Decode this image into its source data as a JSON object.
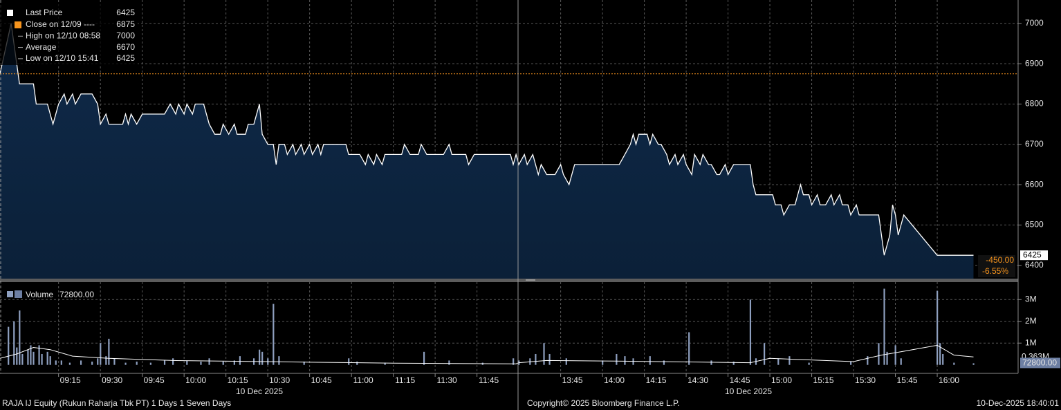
{
  "chart_data": [
    {
      "type": "area",
      "xlim": [
        "08:54",
        "16:29"
      ],
      "ylim": [
        6367,
        7058
      ],
      "yticks": [
        6400,
        6500,
        6600,
        6700,
        6800,
        6900,
        7000
      ],
      "grid": true,
      "x": [
        "08:54",
        "08:58",
        "09:01",
        "09:03",
        "09:06",
        "09:07",
        "09:11",
        "09:13",
        "09:15",
        "09:17",
        "09:18",
        "09:20",
        "09:21",
        "09:23",
        "09:27",
        "09:29",
        "09:30",
        "09:32",
        "09:33",
        "09:38",
        "09:39",
        "09:40",
        "09:41",
        "09:43",
        "09:45",
        "09:53",
        "09:55",
        "09:57",
        "09:58",
        "10:00",
        "10:01",
        "10:03",
        "10:04",
        "10:07",
        "10:09",
        "10:11",
        "10:13",
        "10:14",
        "10:16",
        "10:18",
        "10:19",
        "10:22",
        "10:23",
        "10:25",
        "10:27",
        "10:28",
        "10:30",
        "10:32",
        "10:33",
        "10:34",
        "10:36",
        "10:37",
        "10:39",
        "10:40",
        "10:42",
        "10:43",
        "10:45",
        "10:46",
        "10:48",
        "10:49",
        "10:50",
        "10:58",
        "10:59",
        "11:03",
        "11:05",
        "11:06",
        "11:08",
        "11:09",
        "11:11",
        "11:12",
        "11:18",
        "11:19",
        "11:21",
        "11:24",
        "11:25",
        "11:27",
        "11:33",
        "11:35",
        "11:36",
        "11:41",
        "11:42",
        "11:44",
        "11:57",
        "11:58",
        "11:59",
        "13:30",
        "13:32",
        "13:33",
        "13:35",
        "13:36",
        "13:37",
        "13:38",
        "13:40",
        "13:43",
        "13:45",
        "13:46",
        "13:48",
        "13:50",
        "14:06",
        "14:08",
        "14:10",
        "14:11",
        "14:12",
        "14:13",
        "14:16",
        "14:17",
        "14:18",
        "14:20",
        "14:21",
        "14:23",
        "14:24",
        "14:26",
        "14:27",
        "14:29",
        "14:30",
        "14:32",
        "14:33",
        "14:35",
        "14:36",
        "14:38",
        "14:39",
        "14:41",
        "14:42",
        "14:44",
        "14:45",
        "14:47",
        "14:53",
        "14:54",
        "14:55",
        "15:01",
        "15:02",
        "15:04",
        "15:05",
        "15:07",
        "15:09",
        "15:11",
        "15:12",
        "15:14",
        "15:15",
        "15:17",
        "15:18",
        "15:20",
        "15:22",
        "15:23",
        "15:25",
        "15:26",
        "15:28",
        "15:29",
        "15:31",
        "15:32",
        "15:39",
        "15:41",
        "15:43",
        "15:44",
        "15:45",
        "15:46",
        "15:48",
        "16:00",
        "16:13"
      ],
      "series": [
        {
          "name": "Last Price",
          "color": "#ffffff",
          "values": [
            6875,
            7000,
            6850,
            6850,
            6850,
            6800,
            6800,
            6750,
            6800,
            6825,
            6800,
            6825,
            6800,
            6825,
            6825,
            6800,
            6750,
            6775,
            6750,
            6750,
            6775,
            6750,
            6775,
            6750,
            6775,
            6775,
            6800,
            6775,
            6800,
            6775,
            6800,
            6775,
            6800,
            6800,
            6750,
            6725,
            6725,
            6750,
            6725,
            6750,
            6725,
            6725,
            6750,
            6750,
            6800,
            6725,
            6700,
            6700,
            6650,
            6700,
            6700,
            6675,
            6700,
            6675,
            6700,
            6675,
            6700,
            6675,
            6700,
            6675,
            6700,
            6700,
            6675,
            6675,
            6650,
            6675,
            6650,
            6675,
            6650,
            6675,
            6675,
            6700,
            6675,
            6675,
            6700,
            6675,
            6675,
            6700,
            6675,
            6675,
            6650,
            6675,
            6675,
            6650,
            6675,
            6650,
            6675,
            6650,
            6675,
            6650,
            6625,
            6650,
            6625,
            6625,
            6650,
            6625,
            6600,
            6650,
            6650,
            6675,
            6700,
            6725,
            6700,
            6725,
            6725,
            6700,
            6725,
            6700,
            6700,
            6675,
            6650,
            6675,
            6650,
            6675,
            6650,
            6625,
            6675,
            6650,
            6675,
            6650,
            6650,
            6625,
            6625,
            6650,
            6625,
            6650,
            6650,
            6600,
            6575,
            6575,
            6550,
            6550,
            6525,
            6550,
            6550,
            6600,
            6575,
            6575,
            6550,
            6575,
            6550,
            6550,
            6575,
            6550,
            6575,
            6550,
            6550,
            6525,
            6550,
            6525,
            6525,
            6425,
            6475,
            6550,
            6525,
            6475,
            6525,
            6425,
            6425
          ]
        }
      ],
      "last_value": 6425,
      "stats": [
        {
          "label": "Close on 12/09 ----",
          "value": 6875,
          "color": "#f7941d"
        },
        {
          "label": "High on 12/10 08:58",
          "value": 7000
        },
        {
          "label": "Average",
          "value": 6670
        },
        {
          "label": "Low on 12/10 15:41",
          "value": 6425
        }
      ],
      "change": {
        "value": -450,
        "label": "-450.00"
      },
      "change_pct": {
        "value": -6.55,
        "label": "-6.55%"
      }
    },
    {
      "type": "bar",
      "xlim": [
        "08:54",
        "16:29"
      ],
      "ylim": [
        -390000,
        3740000
      ],
      "yticks": [
        {
          "value": 1000000,
          "label": "1M"
        },
        {
          "value": 2000000,
          "label": "2M"
        },
        {
          "value": 3000000,
          "label": "3M"
        }
      ],
      "xticks": [
        "09:15",
        "09:30",
        "09:45",
        "10:00",
        "10:15",
        "10:30",
        "10:45",
        "11:00",
        "11:15",
        "11:30",
        "11:45",
        "13:45",
        "14:00",
        "14:15",
        "14:30",
        "14:45",
        "15:00",
        "15:15",
        "15:30",
        "15:45",
        "16:00"
      ],
      "date_labels": [
        "10 Dec 2025",
        "10 Dec 2025"
      ],
      "x": [
        "08:57",
        "08:59",
        "09:00",
        "09:01",
        "09:02",
        "09:04",
        "09:05",
        "09:06",
        "09:08",
        "09:09",
        "09:11",
        "09:12",
        "09:14",
        "09:16",
        "09:19",
        "09:23",
        "09:27",
        "09:29",
        "09:30",
        "09:32",
        "09:33",
        "09:35",
        "09:39",
        "09:43",
        "09:48",
        "09:53",
        "09:56",
        "10:01",
        "10:06",
        "10:09",
        "10:14",
        "10:18",
        "10:20",
        "10:25",
        "10:27",
        "10:28",
        "10:30",
        "10:32",
        "10:34",
        "10:43",
        "10:59",
        "11:02",
        "11:12",
        "11:26",
        "11:35",
        "11:47",
        "11:58",
        "13:30",
        "13:34",
        "13:36",
        "13:39",
        "13:41",
        "13:47",
        "14:00",
        "14:05",
        "14:08",
        "14:11",
        "14:17",
        "14:22",
        "14:31",
        "14:39",
        "14:47",
        "14:53",
        "14:55",
        "14:58",
        "15:03",
        "15:07",
        "15:14",
        "15:29",
        "15:35",
        "15:39",
        "15:41",
        "15:42",
        "15:45",
        "15:47",
        "16:00",
        "16:01",
        "16:02",
        "16:06",
        "16:13"
      ],
      "series": [
        {
          "name": "Volume",
          "color": "#8e9fbf",
          "values": [
            1750000,
            2000000,
            800000,
            2500000,
            500000,
            700000,
            900000,
            600000,
            900000,
            500000,
            600000,
            400000,
            200000,
            200000,
            100000,
            200000,
            150000,
            300000,
            1000000,
            400000,
            1200000,
            300000,
            100000,
            150000,
            100000,
            200000,
            300000,
            200000,
            150000,
            300000,
            150000,
            200000,
            400000,
            300000,
            700000,
            600000,
            300000,
            2800000,
            400000,
            150000,
            300000,
            150000,
            100000,
            600000,
            200000,
            100000,
            300000,
            200000,
            300000,
            500000,
            1000000,
            500000,
            300000,
            200000,
            500000,
            400000,
            300000,
            400000,
            200000,
            1500000,
            200000,
            150000,
            3000000,
            300000,
            1000000,
            300000,
            400000,
            100000,
            150000,
            400000,
            1000000,
            3500000,
            600000,
            900000,
            300000,
            3400000,
            1000000,
            500000,
            100000,
            72800
          ],
          "value_labels": [
            "72800.00"
          ]
        }
      ],
      "average": {
        "color": "#ffffff",
        "x": [
          "08:54",
          "09:00",
          "09:06",
          "09:12",
          "09:20",
          "09:33",
          "09:56",
          "10:30",
          "10:45",
          "11:15",
          "11:59",
          "13:30",
          "13:40",
          "14:00",
          "14:20",
          "14:53",
          "15:00",
          "15:10",
          "15:30",
          "15:40",
          "15:47",
          "16:00",
          "16:06",
          "16:13"
        ],
        "values": [
          300000,
          500000,
          800000,
          700000,
          400000,
          300000,
          200000,
          150000,
          120000,
          80000,
          50000,
          100000,
          200000,
          180000,
          150000,
          100000,
          300000,
          250000,
          150000,
          450000,
          600000,
          900000,
          450000,
          363000
        ],
        "value_label": "0.363M"
      }
    }
  ],
  "footer": {
    "left": "RAJA IJ Equity (Rukun Raharja Tbk PT) 1 Days 1 Seven Days",
    "center": "Copyright© 2025 Bloomberg Finance L.P.",
    "right": "10-Dec-2025 18:40:01"
  }
}
